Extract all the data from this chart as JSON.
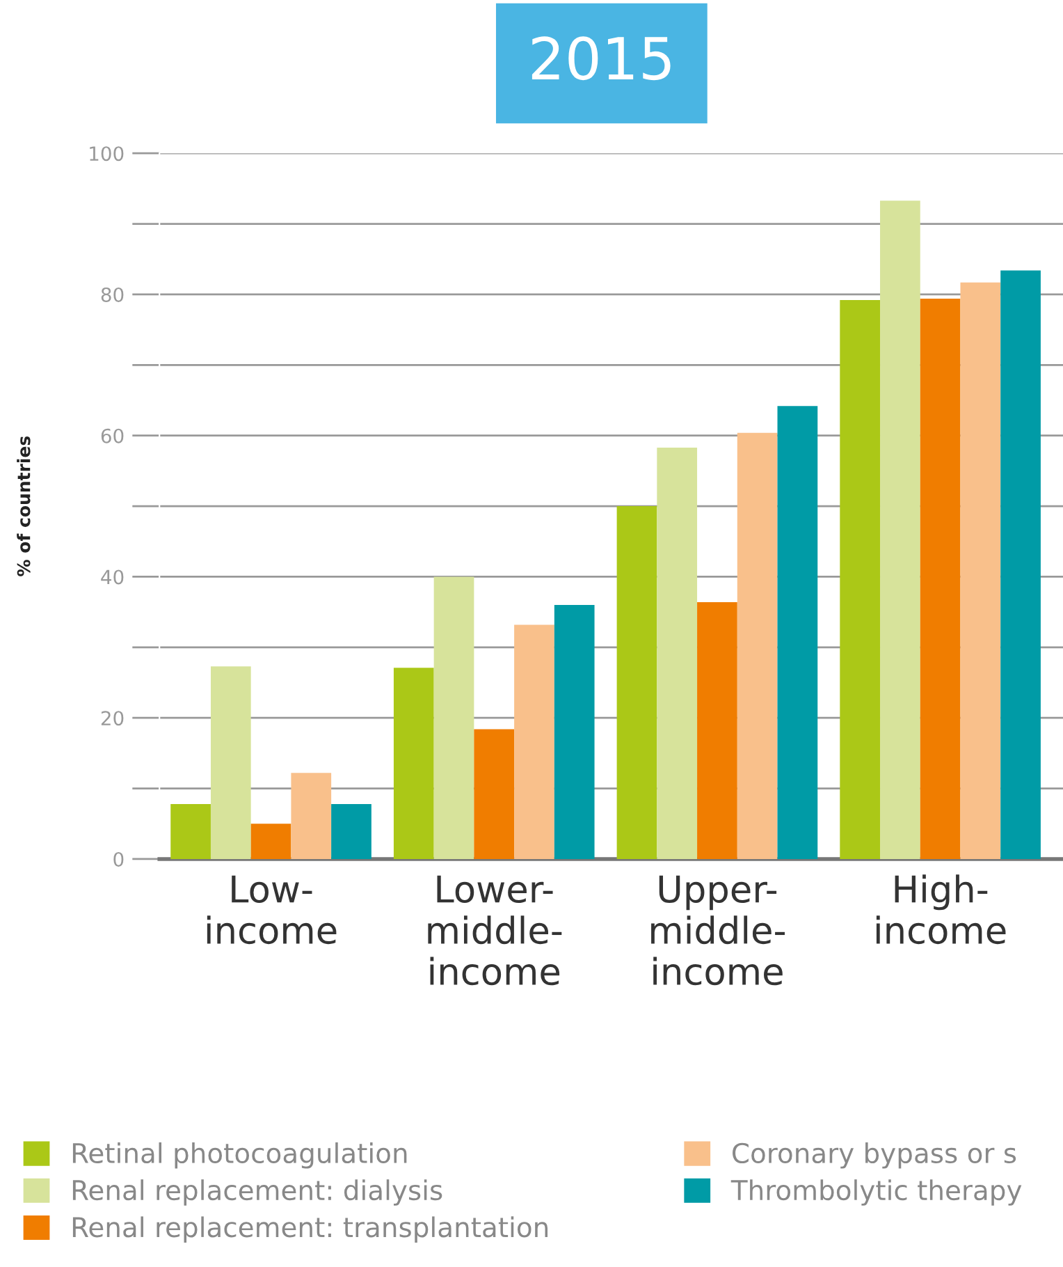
{
  "chart_data": {
    "type": "bar",
    "title": "2015",
    "ylabel": "% of countries",
    "categories": [
      "Low-\nincome",
      "Lower-\nmiddle-\nincome",
      "Upper-\nmiddle-\nincome",
      "High-\nincome"
    ],
    "series": [
      {
        "name": "Retinal photocoagulation",
        "color": "#abc817",
        "values": [
          7.8,
          27.1,
          50,
          79.2
        ]
      },
      {
        "name": "Renal replacement: dialysis",
        "color": "#d7e39b",
        "values": [
          27.3,
          40,
          58.3,
          93.3
        ]
      },
      {
        "name": "Renal replacement: transplantation",
        "color": "#f07d00",
        "values": [
          5,
          18.4,
          36.4,
          79.4
        ]
      },
      {
        "name": "Coronary bypass or s",
        "color": "#f9c08b",
        "values": [
          12.2,
          33.2,
          60.4,
          81.7
        ]
      },
      {
        "name": "Thrombolytic therapy",
        "color": "#009ba6",
        "values": [
          7.8,
          36,
          64.2,
          83.4
        ]
      }
    ],
    "ylim": [
      0,
      100
    ],
    "yticks": [
      0,
      {
        "value": 10,
        "label": null
      },
      20,
      {
        "value": 30,
        "label": null
      },
      40,
      {
        "value": 50,
        "label": null
      },
      60,
      {
        "value": 70,
        "label": null
      },
      80,
      {
        "value": 90,
        "label": null
      },
      100
    ],
    "grid": "y",
    "legend": "bottom"
  }
}
